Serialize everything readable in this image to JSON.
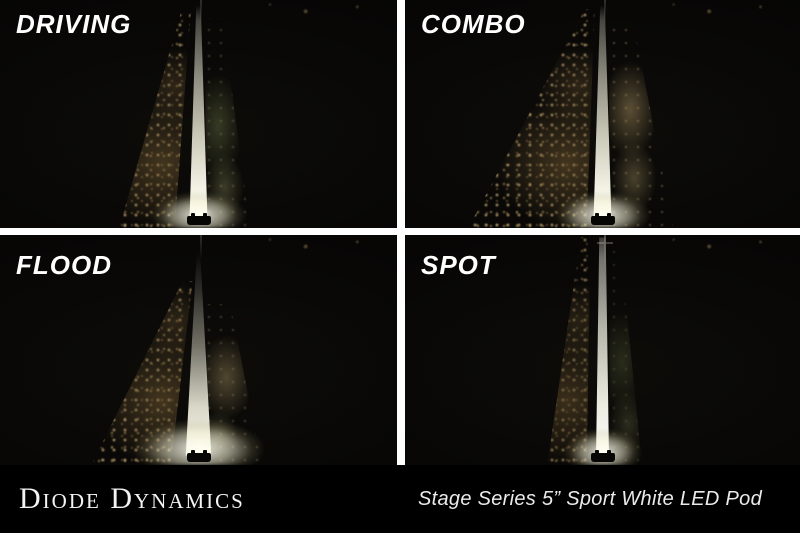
{
  "panels": [
    {
      "id": "driving",
      "label": "DRIVING"
    },
    {
      "id": "combo",
      "label": "COMBO"
    },
    {
      "id": "flood",
      "label": "FLOOD"
    },
    {
      "id": "spot",
      "label": "SPOT"
    }
  ],
  "footer": {
    "brand": "Diode Dynamics",
    "product": "Stage Series 5” Sport White LED Pod"
  },
  "colors": {
    "background": "#000000",
    "divider": "#ffffff",
    "label_text": "#ffffff",
    "footer_text": "#f3f3f3",
    "beam_core": "#fffef2",
    "gravel_scatter": "#8a7348",
    "grass_glow": "#76804e"
  }
}
